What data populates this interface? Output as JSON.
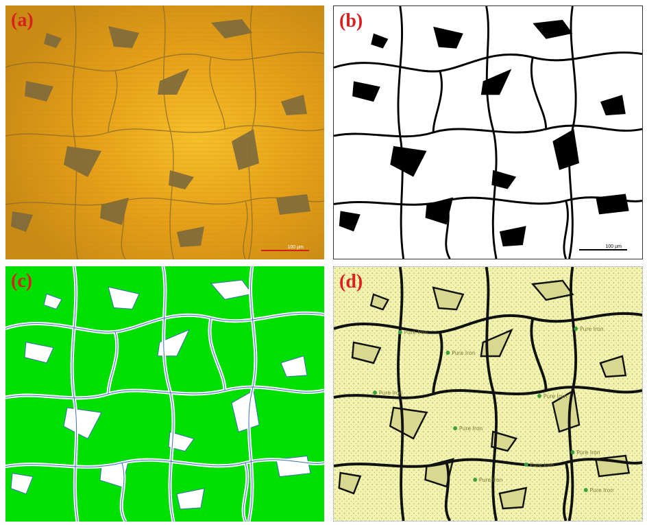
{
  "panels": [
    {
      "id": "a",
      "label": "(a)"
    },
    {
      "id": "b",
      "label": "(b)"
    },
    {
      "id": "c",
      "label": "(c)"
    },
    {
      "id": "d",
      "label": "(d)"
    }
  ],
  "scale_bar": "100 µm",
  "phase_tag": "Pure Iron",
  "colors": {
    "label": "#d92020",
    "micrograph_base": "#e09a18",
    "micrograph_pores": "#7d6a3c",
    "binary_grain": "#ffffff",
    "binary_pore": "#000000",
    "segmented_grain": "#00e000",
    "segmented_boundary": "#3a6fb0",
    "phase_fill": "#f3f3b0",
    "phase_boundary": "#111111",
    "phase_marker": "#3aa03a",
    "scale_bar": "#d02020"
  }
}
